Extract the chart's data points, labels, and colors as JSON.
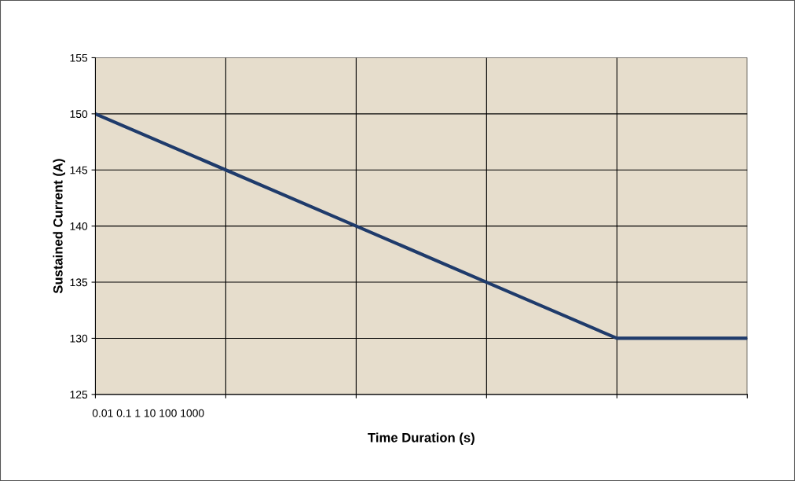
{
  "chart_data": {
    "type": "line",
    "xlabel": "Time Duration (s)",
    "ylabel": "Sustained Current (A)",
    "categories": [
      null,
      null,
      null,
      null,
      null,
      null
    ],
    "series": [
      {
        "color": "#1f3b6b",
        "values": [
          150,
          145,
          140,
          135,
          130,
          130
        ]
      }
    ],
    "ylim": [
      125,
      155
    ],
    "yticks": [
      125,
      130,
      135,
      140,
      145,
      150,
      155
    ],
    "grid": true,
    "legend": false,
    "annotations": [
      "0.01 0.1 1 10 100 1000"
    ]
  }
}
